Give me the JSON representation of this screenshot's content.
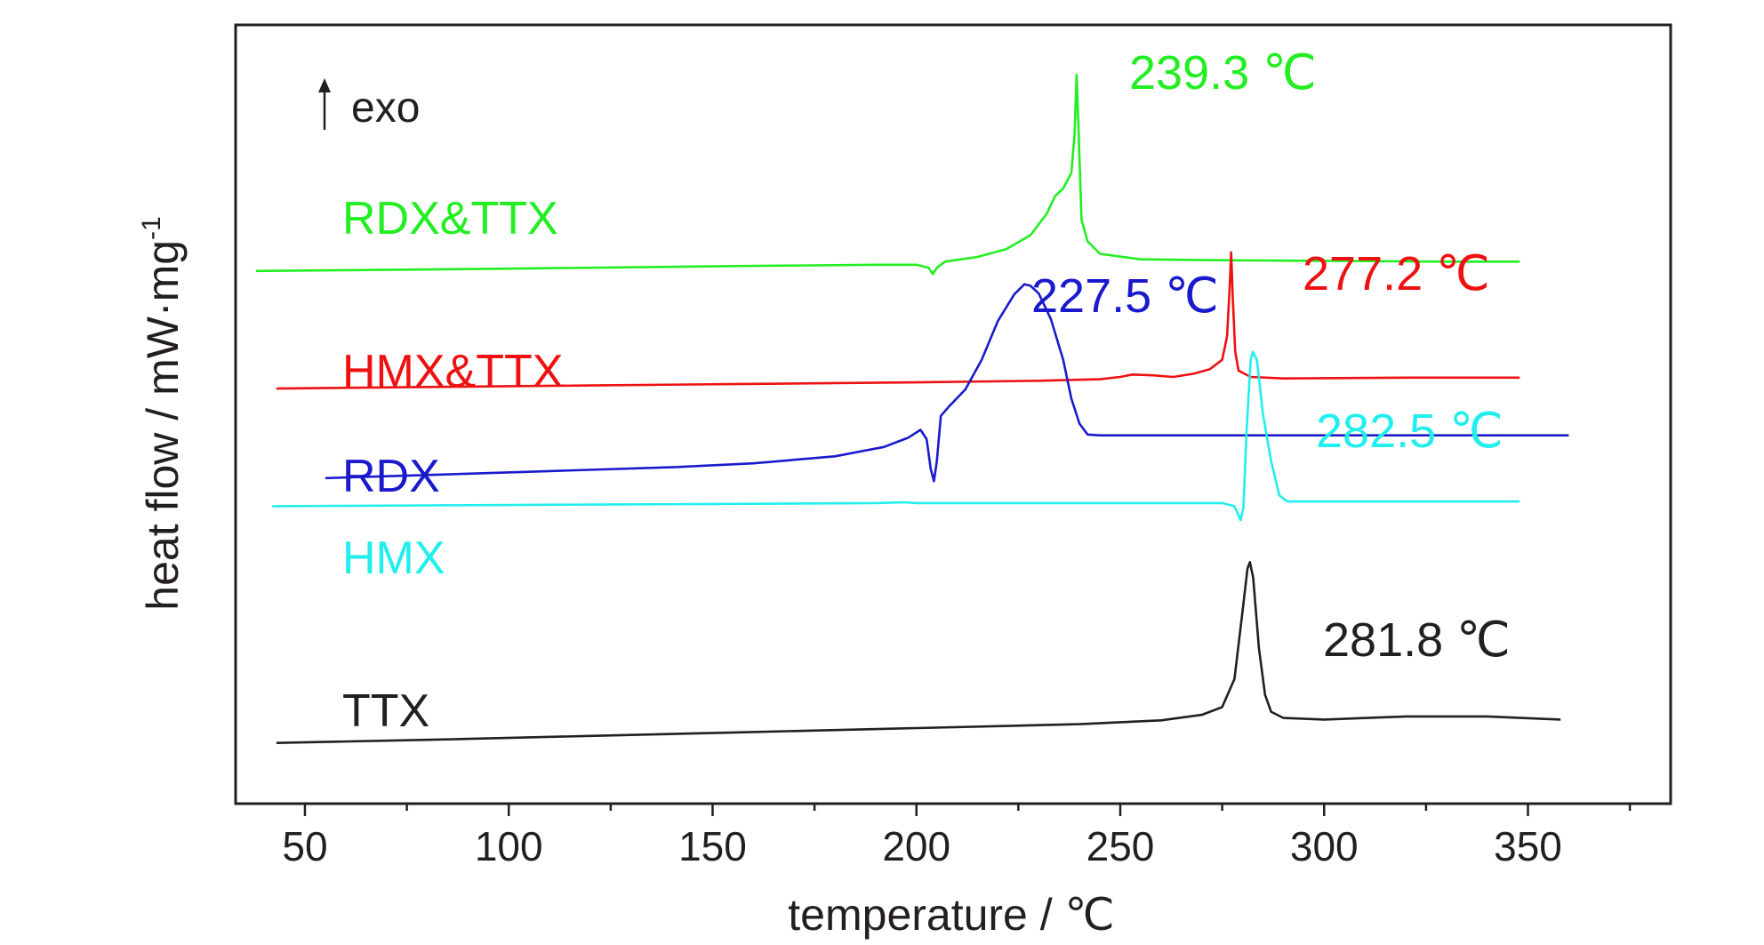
{
  "chart_data": {
    "type": "line",
    "xlabel": "temperature / ℃",
    "ylabel": "heat flow / mW·mg",
    "ylabel_superscript": "-1",
    "xlim": [
      33,
      385
    ],
    "ylim": [
      0,
      1
    ],
    "x_ticks": [
      50,
      100,
      150,
      200,
      250,
      300,
      350
    ],
    "x_tick_labels": [
      "50",
      "100",
      "150",
      "200",
      "250",
      "300",
      "350"
    ],
    "y_ticks_shown": false,
    "exo_label": "exo",
    "series": [
      {
        "name": "RDX&TTX",
        "color": "#22ee22",
        "peak_label": "239.3 ℃",
        "points": [
          [
            38,
            0.684
          ],
          [
            60,
            0.685
          ],
          [
            100,
            0.687
          ],
          [
            150,
            0.69
          ],
          [
            190,
            0.692
          ],
          [
            200,
            0.692
          ],
          [
            203,
            0.688
          ],
          [
            204,
            0.68
          ],
          [
            205,
            0.688
          ],
          [
            207,
            0.696
          ],
          [
            215,
            0.702
          ],
          [
            222,
            0.712
          ],
          [
            228,
            0.73
          ],
          [
            232,
            0.758
          ],
          [
            234,
            0.78
          ],
          [
            236,
            0.79
          ],
          [
            237,
            0.8
          ],
          [
            238,
            0.81
          ],
          [
            238.8,
            0.86
          ],
          [
            239.3,
            0.936
          ],
          [
            239.8,
            0.86
          ],
          [
            240.5,
            0.75
          ],
          [
            242,
            0.722
          ],
          [
            245,
            0.706
          ],
          [
            255,
            0.699
          ],
          [
            270,
            0.698
          ],
          [
            300,
            0.697
          ],
          [
            330,
            0.696
          ],
          [
            348,
            0.696
          ]
        ]
      },
      {
        "name": "HMX&TTX",
        "color": "#ee1111",
        "peak_label": "277.2 ℃",
        "points": [
          [
            43,
            0.533
          ],
          [
            80,
            0.535
          ],
          [
            120,
            0.537
          ],
          [
            160,
            0.539
          ],
          [
            200,
            0.541
          ],
          [
            230,
            0.543
          ],
          [
            245,
            0.545
          ],
          [
            250,
            0.548
          ],
          [
            253,
            0.551
          ],
          [
            258,
            0.55
          ],
          [
            263,
            0.548
          ],
          [
            268,
            0.552
          ],
          [
            272,
            0.558
          ],
          [
            275,
            0.57
          ],
          [
            276.2,
            0.6
          ],
          [
            276.8,
            0.66
          ],
          [
            277.2,
            0.708
          ],
          [
            277.6,
            0.65
          ],
          [
            278.2,
            0.58
          ],
          [
            279,
            0.556
          ],
          [
            282,
            0.548
          ],
          [
            290,
            0.546
          ],
          [
            320,
            0.547
          ],
          [
            348,
            0.547
          ]
        ]
      },
      {
        "name": "RDX",
        "color": "#1a1acc",
        "peak_label": "227.5 ℃",
        "points": [
          [
            55,
            0.418
          ],
          [
            80,
            0.422
          ],
          [
            110,
            0.427
          ],
          [
            140,
            0.432
          ],
          [
            160,
            0.437
          ],
          [
            180,
            0.446
          ],
          [
            192,
            0.458
          ],
          [
            198,
            0.47
          ],
          [
            201,
            0.48
          ],
          [
            202.5,
            0.468
          ],
          [
            203.5,
            0.43
          ],
          [
            204.3,
            0.414
          ],
          [
            205,
            0.44
          ],
          [
            206,
            0.498
          ],
          [
            208,
            0.51
          ],
          [
            212,
            0.532
          ],
          [
            216,
            0.57
          ],
          [
            220,
            0.62
          ],
          [
            224,
            0.654
          ],
          [
            226.5,
            0.667
          ],
          [
            228,
            0.665
          ],
          [
            230,
            0.655
          ],
          [
            233,
            0.622
          ],
          [
            236,
            0.57
          ],
          [
            238,
            0.52
          ],
          [
            240,
            0.488
          ],
          [
            242,
            0.474
          ],
          [
            245,
            0.473
          ],
          [
            280,
            0.473
          ],
          [
            330,
            0.473
          ],
          [
            360,
            0.473
          ]
        ]
      },
      {
        "name": "HMX",
        "color": "#22eeee",
        "peak_label": "282.5 ℃",
        "points": [
          [
            42,
            0.382
          ],
          [
            80,
            0.383
          ],
          [
            120,
            0.384
          ],
          [
            160,
            0.385
          ],
          [
            190,
            0.386
          ],
          [
            197,
            0.387
          ],
          [
            200,
            0.386
          ],
          [
            250,
            0.386
          ],
          [
            275,
            0.386
          ],
          [
            278,
            0.382
          ],
          [
            279.5,
            0.364
          ],
          [
            280.2,
            0.38
          ],
          [
            281,
            0.48
          ],
          [
            282,
            0.57
          ],
          [
            282.5,
            0.58
          ],
          [
            283.5,
            0.57
          ],
          [
            285,
            0.5
          ],
          [
            287,
            0.44
          ],
          [
            289,
            0.396
          ],
          [
            291,
            0.388
          ],
          [
            300,
            0.388
          ],
          [
            330,
            0.388
          ],
          [
            348,
            0.388
          ]
        ]
      },
      {
        "name": "TTX",
        "color": "#231f20",
        "peak_label": "281.8 ℃",
        "points": [
          [
            43,
            0.078
          ],
          [
            80,
            0.082
          ],
          [
            120,
            0.087
          ],
          [
            160,
            0.092
          ],
          [
            200,
            0.097
          ],
          [
            240,
            0.102
          ],
          [
            260,
            0.107
          ],
          [
            270,
            0.114
          ],
          [
            275,
            0.124
          ],
          [
            278,
            0.16
          ],
          [
            280,
            0.248
          ],
          [
            281.2,
            0.302
          ],
          [
            281.8,
            0.31
          ],
          [
            282.6,
            0.29
          ],
          [
            284,
            0.2
          ],
          [
            285.5,
            0.14
          ],
          [
            287,
            0.118
          ],
          [
            290,
            0.11
          ],
          [
            300,
            0.108
          ],
          [
            320,
            0.112
          ],
          [
            340,
            0.112
          ],
          [
            358,
            0.108
          ]
        ]
      }
    ]
  }
}
